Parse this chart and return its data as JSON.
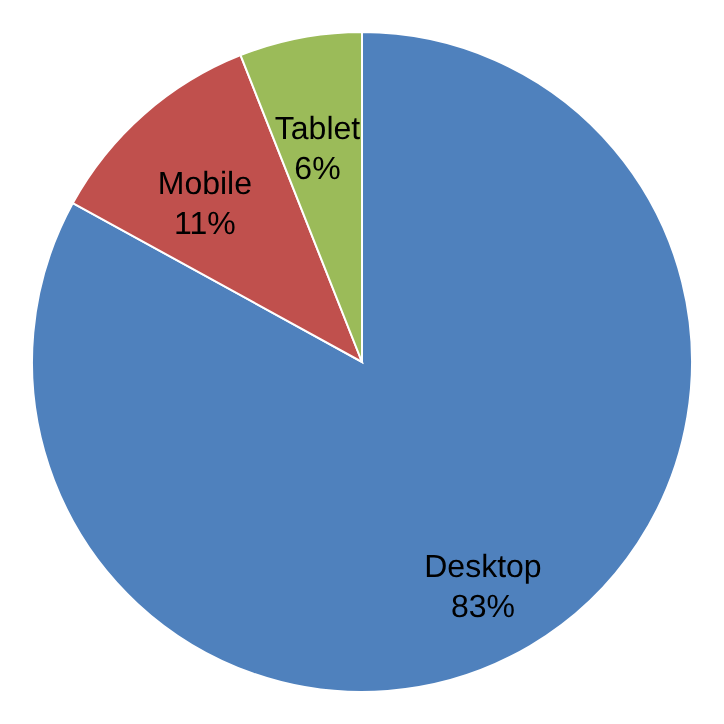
{
  "chart_data": {
    "type": "pie",
    "categories": [
      "Desktop",
      "Mobile",
      "Tablet"
    ],
    "values": [
      83,
      11,
      6
    ],
    "colors": [
      "#4f81bd",
      "#c0504d",
      "#9bbb59"
    ],
    "value_labels": [
      "83%",
      "11%",
      "6%"
    ],
    "legend": false
  }
}
